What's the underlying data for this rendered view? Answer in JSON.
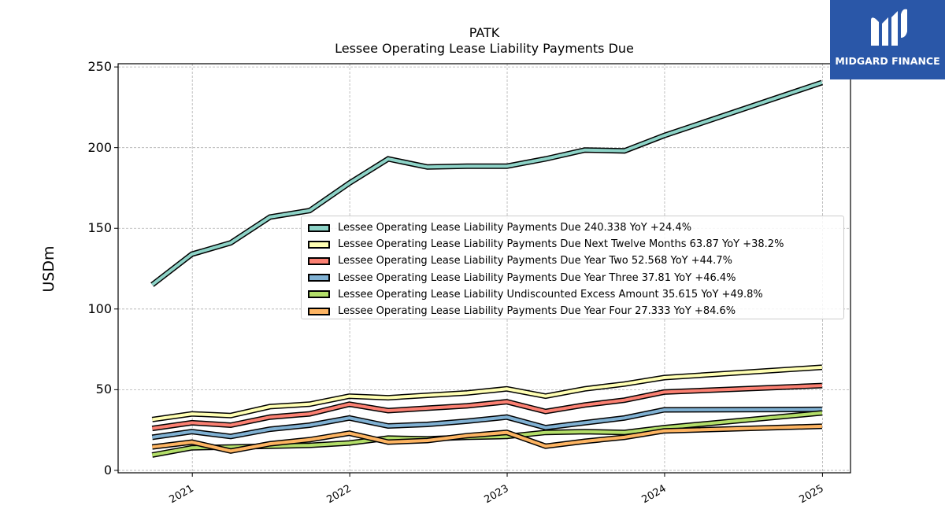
{
  "brand": {
    "name": "MIDGARD FINANCE",
    "color": "#2a57a8",
    "icon": "midgard-m-logo-icon"
  },
  "chart_data": {
    "type": "line",
    "title": "PATK",
    "subtitle": "Lessee Operating Lease Liability Payments Due",
    "ylabel": "USDm",
    "xlabel": "",
    "x_tick_labels": [
      "2021",
      "2022",
      "2023",
      "2024",
      "2025"
    ],
    "y_ticks": [
      0,
      50,
      100,
      150,
      200,
      250
    ],
    "ylim": [
      -1.5,
      252
    ],
    "xlim": [
      "2020-07-13",
      "2025-03-07"
    ],
    "grid": true,
    "legend_position": "center-right",
    "x": [
      "2020-09-30",
      "2020-12-31",
      "2021-03-31",
      "2021-06-30",
      "2021-09-30",
      "2021-12-31",
      "2022-03-31",
      "2022-06-30",
      "2022-09-30",
      "2022-12-31",
      "2023-03-31",
      "2023-06-30",
      "2023-09-30",
      "2023-12-31",
      "2024-12-31"
    ],
    "series": [
      {
        "name": "Lessee Operating Lease Liability Payments Due",
        "legend_label": "Lessee Operating Lease Liability Payments Due  240.338 YoY +24.4%",
        "color": "#8dd3c7",
        "values": [
          115,
          134,
          141,
          157,
          161,
          178,
          193,
          188,
          188.5,
          188.5,
          193,
          198.5,
          198,
          207.5,
          240.338
        ]
      },
      {
        "name": "Lessee Operating Lease Liability Payments Due Next Twelve Months",
        "legend_label": "Lessee Operating Lease Liability Payments Due Next Twelve Months  63.87 YoY +38.2%",
        "color": "#ffffb3",
        "values": [
          31.5,
          35,
          34,
          39.5,
          41,
          46,
          45,
          46.5,
          48,
          50.5,
          46,
          50.5,
          53.5,
          57.5,
          63.87
        ]
      },
      {
        "name": "Lessee Operating Lease Liability Payments Due Year Two",
        "legend_label": "Lessee Operating Lease Liability Payments Due Year Two  52.568 YoY +44.7%",
        "color": "#fb8072",
        "values": [
          26,
          29.5,
          28,
          33,
          35,
          41,
          37,
          38.5,
          40,
          42.5,
          36.5,
          40.5,
          43.5,
          48.5,
          52.568
        ]
      },
      {
        "name": "Lessee Operating Lease Liability Payments Due Year Three",
        "legend_label": "Lessee Operating Lease Liability Payments Due Year Three  37.81 YoY +46.4%",
        "color": "#80b1d3",
        "values": [
          20.5,
          24,
          21,
          25.5,
          28,
          32.5,
          27.5,
          28.5,
          30.5,
          33,
          26.5,
          29.5,
          32.5,
          37.5,
          37.81
        ]
      },
      {
        "name": "Lessee Operating Lease Liability Undiscounted Excess Amount",
        "legend_label": "Lessee Operating Lease Liability Undiscounted Excess Amount  35.615 YoY +49.8%",
        "color": "#b3de69",
        "values": [
          9.5,
          14,
          14.5,
          15,
          15.5,
          17,
          20,
          19.5,
          20.5,
          21,
          23.5,
          24,
          23.5,
          26.5,
          35.615
        ]
      },
      {
        "name": "Lessee Operating Lease Liability Payments Due Year Four",
        "legend_label": "Lessee Operating Lease Liability Payments Due Year Four  27.333 YoY +84.6%",
        "color": "#fdb462",
        "values": [
          14.5,
          17.5,
          12,
          16.5,
          19,
          23,
          17.5,
          18.5,
          21.5,
          23.5,
          15,
          18,
          20.5,
          24.5,
          27.333
        ]
      }
    ]
  }
}
